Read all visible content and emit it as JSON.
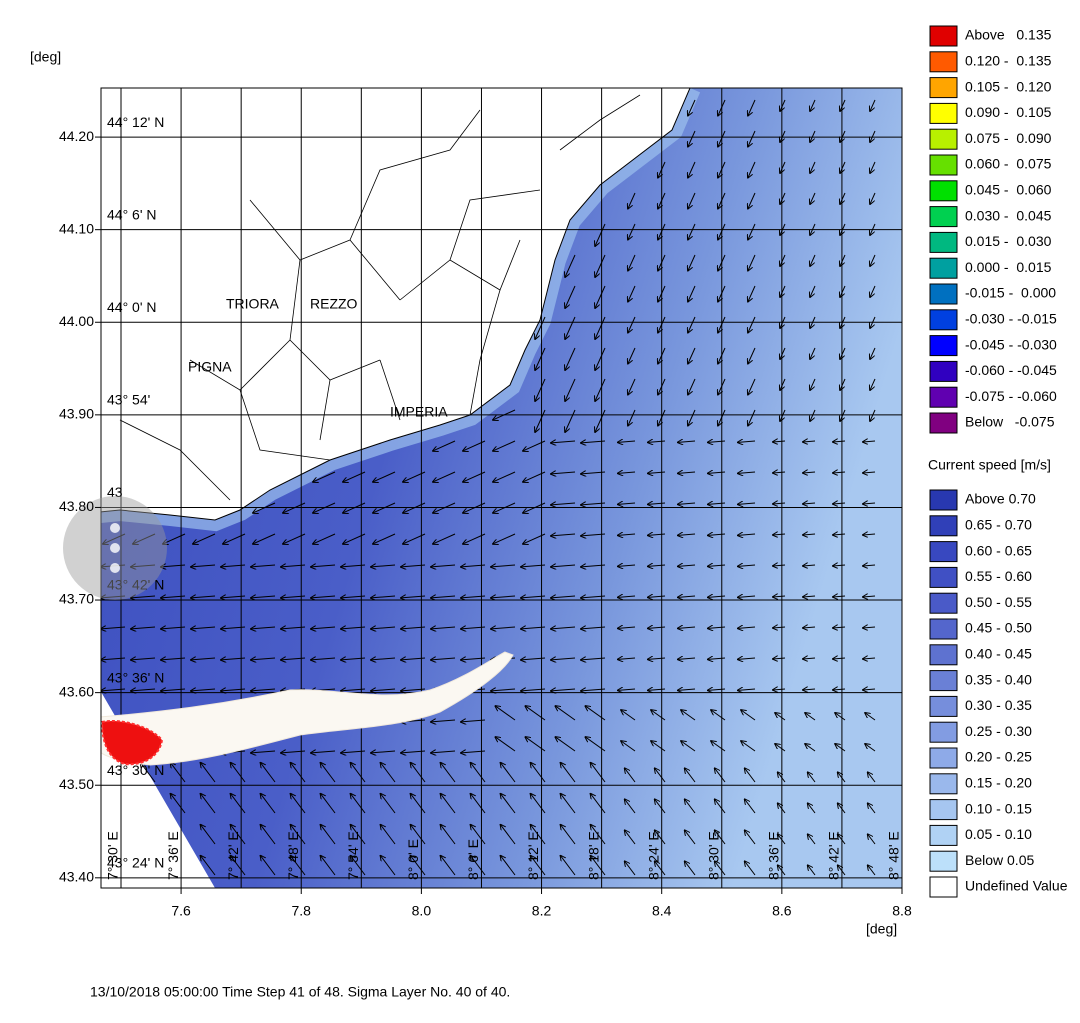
{
  "axis_unit_y": "[deg]",
  "axis_unit_x": "[deg]",
  "xlim": [
    7.4667,
    8.8
  ],
  "ylim": [
    43.389,
    44.253
  ],
  "xticks": [
    {
      "value": 7.6,
      "label": "7.6"
    },
    {
      "value": 7.8,
      "label": "7.8"
    },
    {
      "value": 8,
      "label": "8.0"
    },
    {
      "value": 8.2,
      "label": "8.2"
    },
    {
      "value": 8.4,
      "label": "8.4"
    },
    {
      "value": 8.6,
      "label": "8.6"
    },
    {
      "value": 8.8,
      "label": "8.8"
    }
  ],
  "yticks": [
    {
      "value": 44.2,
      "label": "44.20"
    },
    {
      "value": 44.1,
      "label": "44.10"
    },
    {
      "value": 44,
      "label": "44.00"
    },
    {
      "value": 43.9,
      "label": "43.90"
    },
    {
      "value": 43.8,
      "label": "43.80"
    },
    {
      "value": 43.7,
      "label": "43.70"
    },
    {
      "value": 43.6,
      "label": "43.60"
    },
    {
      "value": 43.5,
      "label": "43.50"
    },
    {
      "value": 43.4,
      "label": "43.40"
    }
  ],
  "lat_labels": [
    {
      "value": 44.2,
      "label": "44° 12' N"
    },
    {
      "value": 44.1,
      "label": "44° 6' N"
    },
    {
      "value": 44,
      "label": "44° 0' N"
    },
    {
      "value": 43.9,
      "label": "43° 54'"
    },
    {
      "value": 43.8,
      "label": "43"
    },
    {
      "value": 43.7,
      "label": "43° 42' N"
    },
    {
      "value": 43.6,
      "label": "43° 36' N"
    },
    {
      "value": 43.5,
      "label": "43° 30' N"
    },
    {
      "value": 43.4,
      "label": "43° 24' N"
    }
  ],
  "lon_labels": [
    {
      "value": 7.5,
      "label": "7° 30' E"
    },
    {
      "value": 7.6,
      "label": "7° 36' E"
    },
    {
      "value": 7.7,
      "label": "7° 42' E"
    },
    {
      "value": 7.8,
      "label": "7° 48' E"
    },
    {
      "value": 7.9,
      "label": "7° 54' E"
    },
    {
      "value": 8,
      "label": "8° 0' E"
    },
    {
      "value": 8.1,
      "label": "8° 6' E"
    },
    {
      "value": 8.2,
      "label": "8° 12' E"
    },
    {
      "value": 8.3,
      "label": "8° 18' E"
    },
    {
      "value": 8.4,
      "label": "8° 24' E"
    },
    {
      "value": 8.5,
      "label": "8° 30' E"
    },
    {
      "value": 8.6,
      "label": "8° 36' E"
    },
    {
      "value": 8.7,
      "label": "8° 42' E"
    },
    {
      "value": 8.8,
      "label": "8° 48' E"
    }
  ],
  "places": [
    "TRIORA",
    "REZZO",
    "PIGNA",
    "IMPERIA"
  ],
  "legend_top": {
    "items": [
      {
        "label": "Above   0.135",
        "color": "#e00000"
      },
      {
        "label": "0.120 -  0.135",
        "color": "#ff5a00"
      },
      {
        "label": "0.105 -  0.120",
        "color": "#ffa500"
      },
      {
        "label": "0.090 -  0.105",
        "color": "#ffff00"
      },
      {
        "label": "0.075 -  0.090",
        "color": "#b8f000"
      },
      {
        "label": "0.060 -  0.075",
        "color": "#66e000"
      },
      {
        "label": "0.045 -  0.060",
        "color": "#00e000"
      },
      {
        "label": "0.030 -  0.045",
        "color": "#00d050"
      },
      {
        "label": "0.015 -  0.030",
        "color": "#00b880"
      },
      {
        "label": "0.000 -  0.015",
        "color": "#00a0a0"
      },
      {
        "label": "-0.015 -  0.000",
        "color": "#0070c0"
      },
      {
        "label": "-0.030 - -0.015",
        "color": "#0040e0"
      },
      {
        "label": "-0.045 - -0.030",
        "color": "#0000ff"
      },
      {
        "label": "-0.060 - -0.045",
        "color": "#3000c0"
      },
      {
        "label": "-0.075 - -0.060",
        "color": "#6000b0"
      },
      {
        "label": "Below   -0.075",
        "color": "#800080"
      }
    ]
  },
  "legend_speed": {
    "title": "Current speed [m/s]",
    "items": [
      {
        "label": "Above 0.70",
        "color": "#2838b0"
      },
      {
        "label": "0.65 - 0.70",
        "color": "#3040b8"
      },
      {
        "label": "0.60 - 0.65",
        "color": "#3848c0"
      },
      {
        "label": "0.55 - 0.60",
        "color": "#4050c4"
      },
      {
        "label": "0.50 - 0.55",
        "color": "#4a5ac8"
      },
      {
        "label": "0.45 - 0.50",
        "color": "#5466cc"
      },
      {
        "label": "0.40 - 0.45",
        "color": "#5e72d0"
      },
      {
        "label": "0.35 - 0.40",
        "color": "#6a80d6"
      },
      {
        "label": "0.30 - 0.35",
        "color": "#768edc"
      },
      {
        "label": "0.25 - 0.30",
        "color": "#829ce2"
      },
      {
        "label": "0.20 - 0.25",
        "color": "#8eaae8"
      },
      {
        "label": "0.15 - 0.20",
        "color": "#9ab8ec"
      },
      {
        "label": "0.10 - 0.15",
        "color": "#a6c6f0"
      },
      {
        "label": "0.05 - 0.10",
        "color": "#b0d2f4"
      },
      {
        "label": "Below 0.05",
        "color": "#bce0fa"
      },
      {
        "label": "Undefined Value",
        "color": "#ffffff"
      }
    ]
  },
  "footer": "13/10/2018 05:00:00  Time Step 41 of 48. Sigma Layer No. 40 of 40."
}
